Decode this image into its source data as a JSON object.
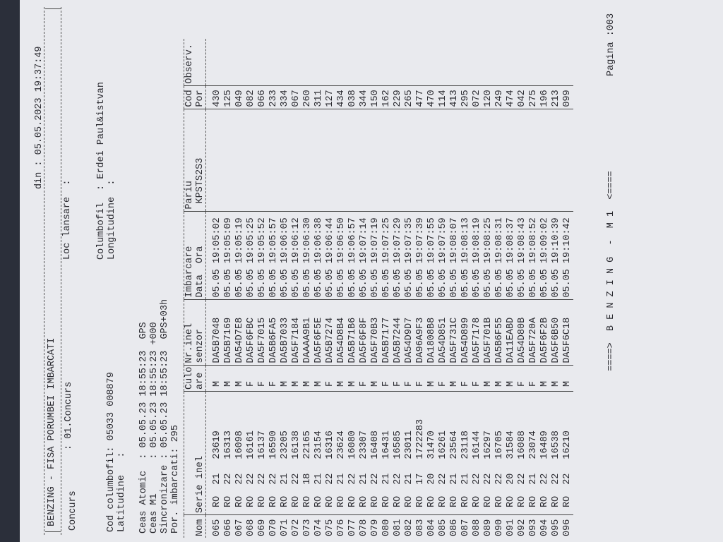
{
  "header": {
    "title": "BENZING - FISA PORUMBEI IMBARCATI",
    "date_label": "din : 05.05.2023 19:37:49",
    "concurs_label": "Concurs",
    "concurs_value": ": 01.Concurs",
    "loc_lansare_label": "Loc lansare  :",
    "cod_columbofil": "Cod columbofil: 05033 008879",
    "columbofil_label": "Columbofil",
    "columbofil_value": ": Erdei Paul&istvan",
    "latitudine": "Latitudine   :",
    "longitudine": "Longitudine  :",
    "ceas_atomic": "Ceas Atomic  : 05.05.23 18:55:23  GPS",
    "ceas_m1": "Ceas M1      : 05.05.23 18:55:23 +000",
    "sincronizare": "Sincronizare : 05.05.23 18:55:23  GPS+03h",
    "por_imbarcati": "Por. imbarcati: 295"
  },
  "table": {
    "columns": {
      "nom": "\nNom",
      "serie": "\nSerie inel",
      "culoare": "Culo\nare",
      "senzor": "Nr.inel\nsenzor",
      "imbarcare": "Imbarcare\nData  Ora",
      "pariu": "Pariu\n KPSTS2S3",
      "cod": "Cod\nPor",
      "observ": "Observ."
    },
    "rows": [
      [
        "065",
        "RO",
        "21",
        "23619",
        "M",
        "DA5B7048",
        "05.05",
        "19:05:02",
        "",
        "430"
      ],
      [
        "066",
        "RO",
        "22",
        "16313",
        "M",
        "DA5B7169",
        "05.05",
        "19:05:09",
        "",
        "125"
      ],
      [
        "067",
        "RO",
        "22",
        "16098",
        "M",
        "DA54D7E8",
        "05.05",
        "19:05:19",
        "",
        "049"
      ],
      [
        "068",
        "RO",
        "22",
        "16161",
        "F",
        "DA5F6FBC",
        "05.05",
        "19:05:25",
        "",
        "082"
      ],
      [
        "069",
        "RO",
        "22",
        "16137",
        "F",
        "DA5F7015",
        "05.05",
        "19:05:52",
        "",
        "066"
      ],
      [
        "070",
        "RO",
        "22",
        "16590",
        "F",
        "DA5B6FA5",
        "05.05",
        "19:05:57",
        "",
        "233"
      ],
      [
        "071",
        "RO",
        "21",
        "23205",
        "M",
        "DA5B7033",
        "05.05",
        "19:06:05",
        "",
        "334"
      ],
      [
        "072",
        "RO",
        "22",
        "16138",
        "M",
        "DA5F7184",
        "05.05",
        "19:06:12",
        "",
        "067"
      ],
      [
        "073",
        "RO",
        "18",
        "22165",
        "M",
        "DAAAA9B1",
        "05.05",
        "19:06:30",
        "",
        "260"
      ],
      [
        "074",
        "RO",
        "21",
        "23154",
        "M",
        "DA5F6F5E",
        "05.05",
        "19:06:38",
        "",
        "311"
      ],
      [
        "075",
        "RO",
        "22",
        "16316",
        "F",
        "DA5B7274",
        "05.05",
        "19:06:44",
        "",
        "127"
      ],
      [
        "076",
        "RO",
        "21",
        "23624",
        "M",
        "DA54D8B4",
        "05.05",
        "19:06:50",
        "",
        "434"
      ],
      [
        "077",
        "RO",
        "22",
        "16080",
        "M",
        "DA5B71B6",
        "05.05",
        "19:06:57",
        "",
        "038"
      ],
      [
        "078",
        "RO",
        "21",
        "23307",
        "F",
        "DA5F6F8F",
        "05.05",
        "19:07:14",
        "",
        "344"
      ],
      [
        "079",
        "RO",
        "22",
        "16408",
        "M",
        "DA5F70B3",
        "05.05",
        "19:07:19",
        "",
        "150"
      ],
      [
        "080",
        "RO",
        "21",
        "16431",
        "F",
        "DA5B7177",
        "05.05",
        "19:07:25",
        "",
        "162"
      ],
      [
        "081",
        "RO",
        "22",
        "16585",
        "F",
        "DA5B7244",
        "05.05",
        "19:07:29",
        "",
        "229"
      ],
      [
        "082",
        "RO",
        "21",
        "23011",
        "F",
        "DA54D9D7",
        "05.05",
        "19:07:35",
        "",
        "265"
      ],
      [
        "083",
        "RO",
        "17",
        "1722283",
        "F",
        "DA96A9F3",
        "05.05",
        "19:07:39",
        "",
        "477"
      ],
      [
        "084",
        "RO",
        "20",
        "31470",
        "M",
        "DA1808B8",
        "05.05",
        "19:07:55",
        "",
        "470"
      ],
      [
        "085",
        "RO",
        "22",
        "16261",
        "F",
        "DA54D851",
        "05.05",
        "19:07:59",
        "",
        "114"
      ],
      [
        "086",
        "RO",
        "21",
        "23564",
        "M",
        "DA5F731C",
        "05.05",
        "19:08:07",
        "",
        "413"
      ],
      [
        "087",
        "RO",
        "21",
        "23118",
        "F",
        "DA54D899",
        "05.05",
        "19:08:13",
        "",
        "295"
      ],
      [
        "088",
        "RO",
        "22",
        "16144",
        "F",
        "DA5F7178",
        "05.05",
        "19:08:19",
        "",
        "072"
      ],
      [
        "089",
        "RO",
        "22",
        "16297",
        "M",
        "DA5F701B",
        "05.05",
        "19:08:25",
        "",
        "120"
      ],
      [
        "090",
        "RO",
        "22",
        "16705",
        "M",
        "DA5B6F55",
        "05.05",
        "19:08:31",
        "",
        "249"
      ],
      [
        "091",
        "RO",
        "20",
        "31584",
        "M",
        "DA11EABD",
        "05.05",
        "19:08:37",
        "",
        "474"
      ],
      [
        "092",
        "RO",
        "22",
        "16088",
        "F",
        "DA54D80B",
        "05.05",
        "19:08:43",
        "",
        "042"
      ],
      [
        "093",
        "RO",
        "21",
        "23074",
        "F",
        "DA5F720A",
        "05.05",
        "19:08:52",
        "",
        "275"
      ],
      [
        "094",
        "RO",
        "22",
        "16489",
        "M",
        "DA5F6F2B",
        "05.05",
        "19:09:02",
        "",
        "196"
      ],
      [
        "095",
        "RO",
        "22",
        "16538",
        "M",
        "DA5F6B50",
        "05.05",
        "19:10:39",
        "",
        "213"
      ],
      [
        "096",
        "RO",
        "22",
        "16210",
        "M",
        "DA5F6C18",
        "05.05",
        "19:10:42",
        "",
        "099"
      ]
    ]
  },
  "footer": {
    "banner": "====>  B E N Z I N G  -  M 1  <====",
    "page": "Pagina :003"
  }
}
